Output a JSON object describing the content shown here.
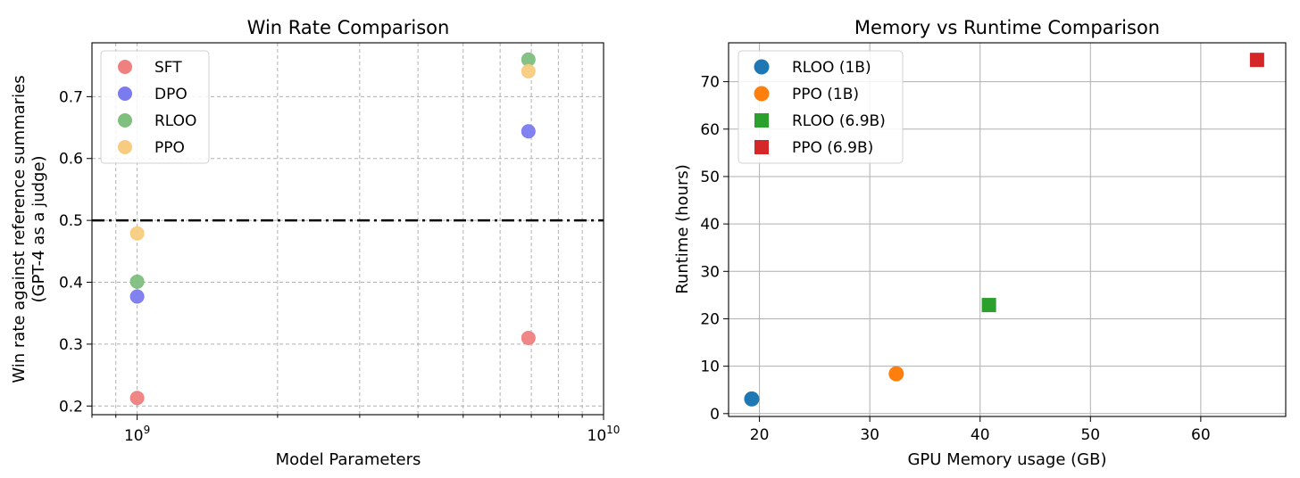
{
  "chart_data": [
    {
      "type": "scatter",
      "title": "Win Rate Comparison",
      "xlabel": "Model Parameters",
      "ylabel": [
        "Win rate against reference summaries",
        "(GPT-4 as a judge)"
      ],
      "xscale": "log",
      "xlim": [
        800000000,
        10000000000
      ],
      "ylim": [
        0.186,
        0.787
      ],
      "x_ticks": [
        {
          "value": 1000000000,
          "base": "10",
          "exp": "9"
        },
        {
          "value": 10000000000,
          "base": "10",
          "exp": "10"
        }
      ],
      "y_ticks": [
        {
          "value": 0.2,
          "label": "0.2"
        },
        {
          "value": 0.3,
          "label": "0.3"
        },
        {
          "value": 0.4,
          "label": "0.4"
        },
        {
          "value": 0.5,
          "label": "0.5"
        },
        {
          "value": 0.6,
          "label": "0.6"
        },
        {
          "value": 0.7,
          "label": "0.7"
        }
      ],
      "grid": true,
      "reference_line": {
        "y": 0.5,
        "style": "dashdot",
        "color": "#000000"
      },
      "legend_position": "top-left",
      "series": [
        {
          "name": "SFT",
          "color": "#f08080",
          "points": [
            [
              1000000000,
              0.213
            ],
            [
              6900000000,
              0.31
            ]
          ]
        },
        {
          "name": "DPO",
          "color": "#7b7bf0",
          "points": [
            [
              1000000000,
              0.377
            ],
            [
              6900000000,
              0.644
            ]
          ]
        },
        {
          "name": "RLOO",
          "color": "#7fbf7f",
          "points": [
            [
              1000000000,
              0.401
            ],
            [
              6900000000,
              0.76
            ]
          ]
        },
        {
          "name": "PPO",
          "color": "#f8cc80",
          "points": [
            [
              1000000000,
              0.479
            ],
            [
              6900000000,
              0.741
            ]
          ]
        }
      ]
    },
    {
      "type": "scatter",
      "title": "Memory vs Runtime Comparison",
      "xlabel": "GPU Memory usage (GB)",
      "ylabel": [
        "Runtime (hours)"
      ],
      "xlim": [
        17.2,
        67.7
      ],
      "ylim": [
        -0.6,
        78.2
      ],
      "x_ticks": [
        {
          "value": 20,
          "label": "20"
        },
        {
          "value": 30,
          "label": "30"
        },
        {
          "value": 40,
          "label": "40"
        },
        {
          "value": 50,
          "label": "50"
        },
        {
          "value": 60,
          "label": "60"
        }
      ],
      "y_ticks": [
        {
          "value": 0,
          "label": "0"
        },
        {
          "value": 10,
          "label": "10"
        },
        {
          "value": 20,
          "label": "20"
        },
        {
          "value": 30,
          "label": "30"
        },
        {
          "value": 40,
          "label": "40"
        },
        {
          "value": 50,
          "label": "50"
        },
        {
          "value": 60,
          "label": "60"
        },
        {
          "value": 70,
          "label": "70"
        }
      ],
      "grid": true,
      "legend_position": "top-left",
      "series": [
        {
          "name": "RLOO (1B)",
          "color": "#1f77b4",
          "marker": "circle",
          "points": [
            [
              19.3,
              3.1
            ]
          ]
        },
        {
          "name": "PPO (1B)",
          "color": "#ff7f0e",
          "marker": "circle",
          "points": [
            [
              32.4,
              8.4
            ]
          ]
        },
        {
          "name": "RLOO (6.9B)",
          "color": "#2ca02c",
          "marker": "square",
          "points": [
            [
              40.8,
              22.9
            ]
          ]
        },
        {
          "name": "PPO (6.9B)",
          "color": "#d62728",
          "marker": "square",
          "points": [
            [
              65.1,
              74.6
            ]
          ]
        }
      ]
    }
  ]
}
